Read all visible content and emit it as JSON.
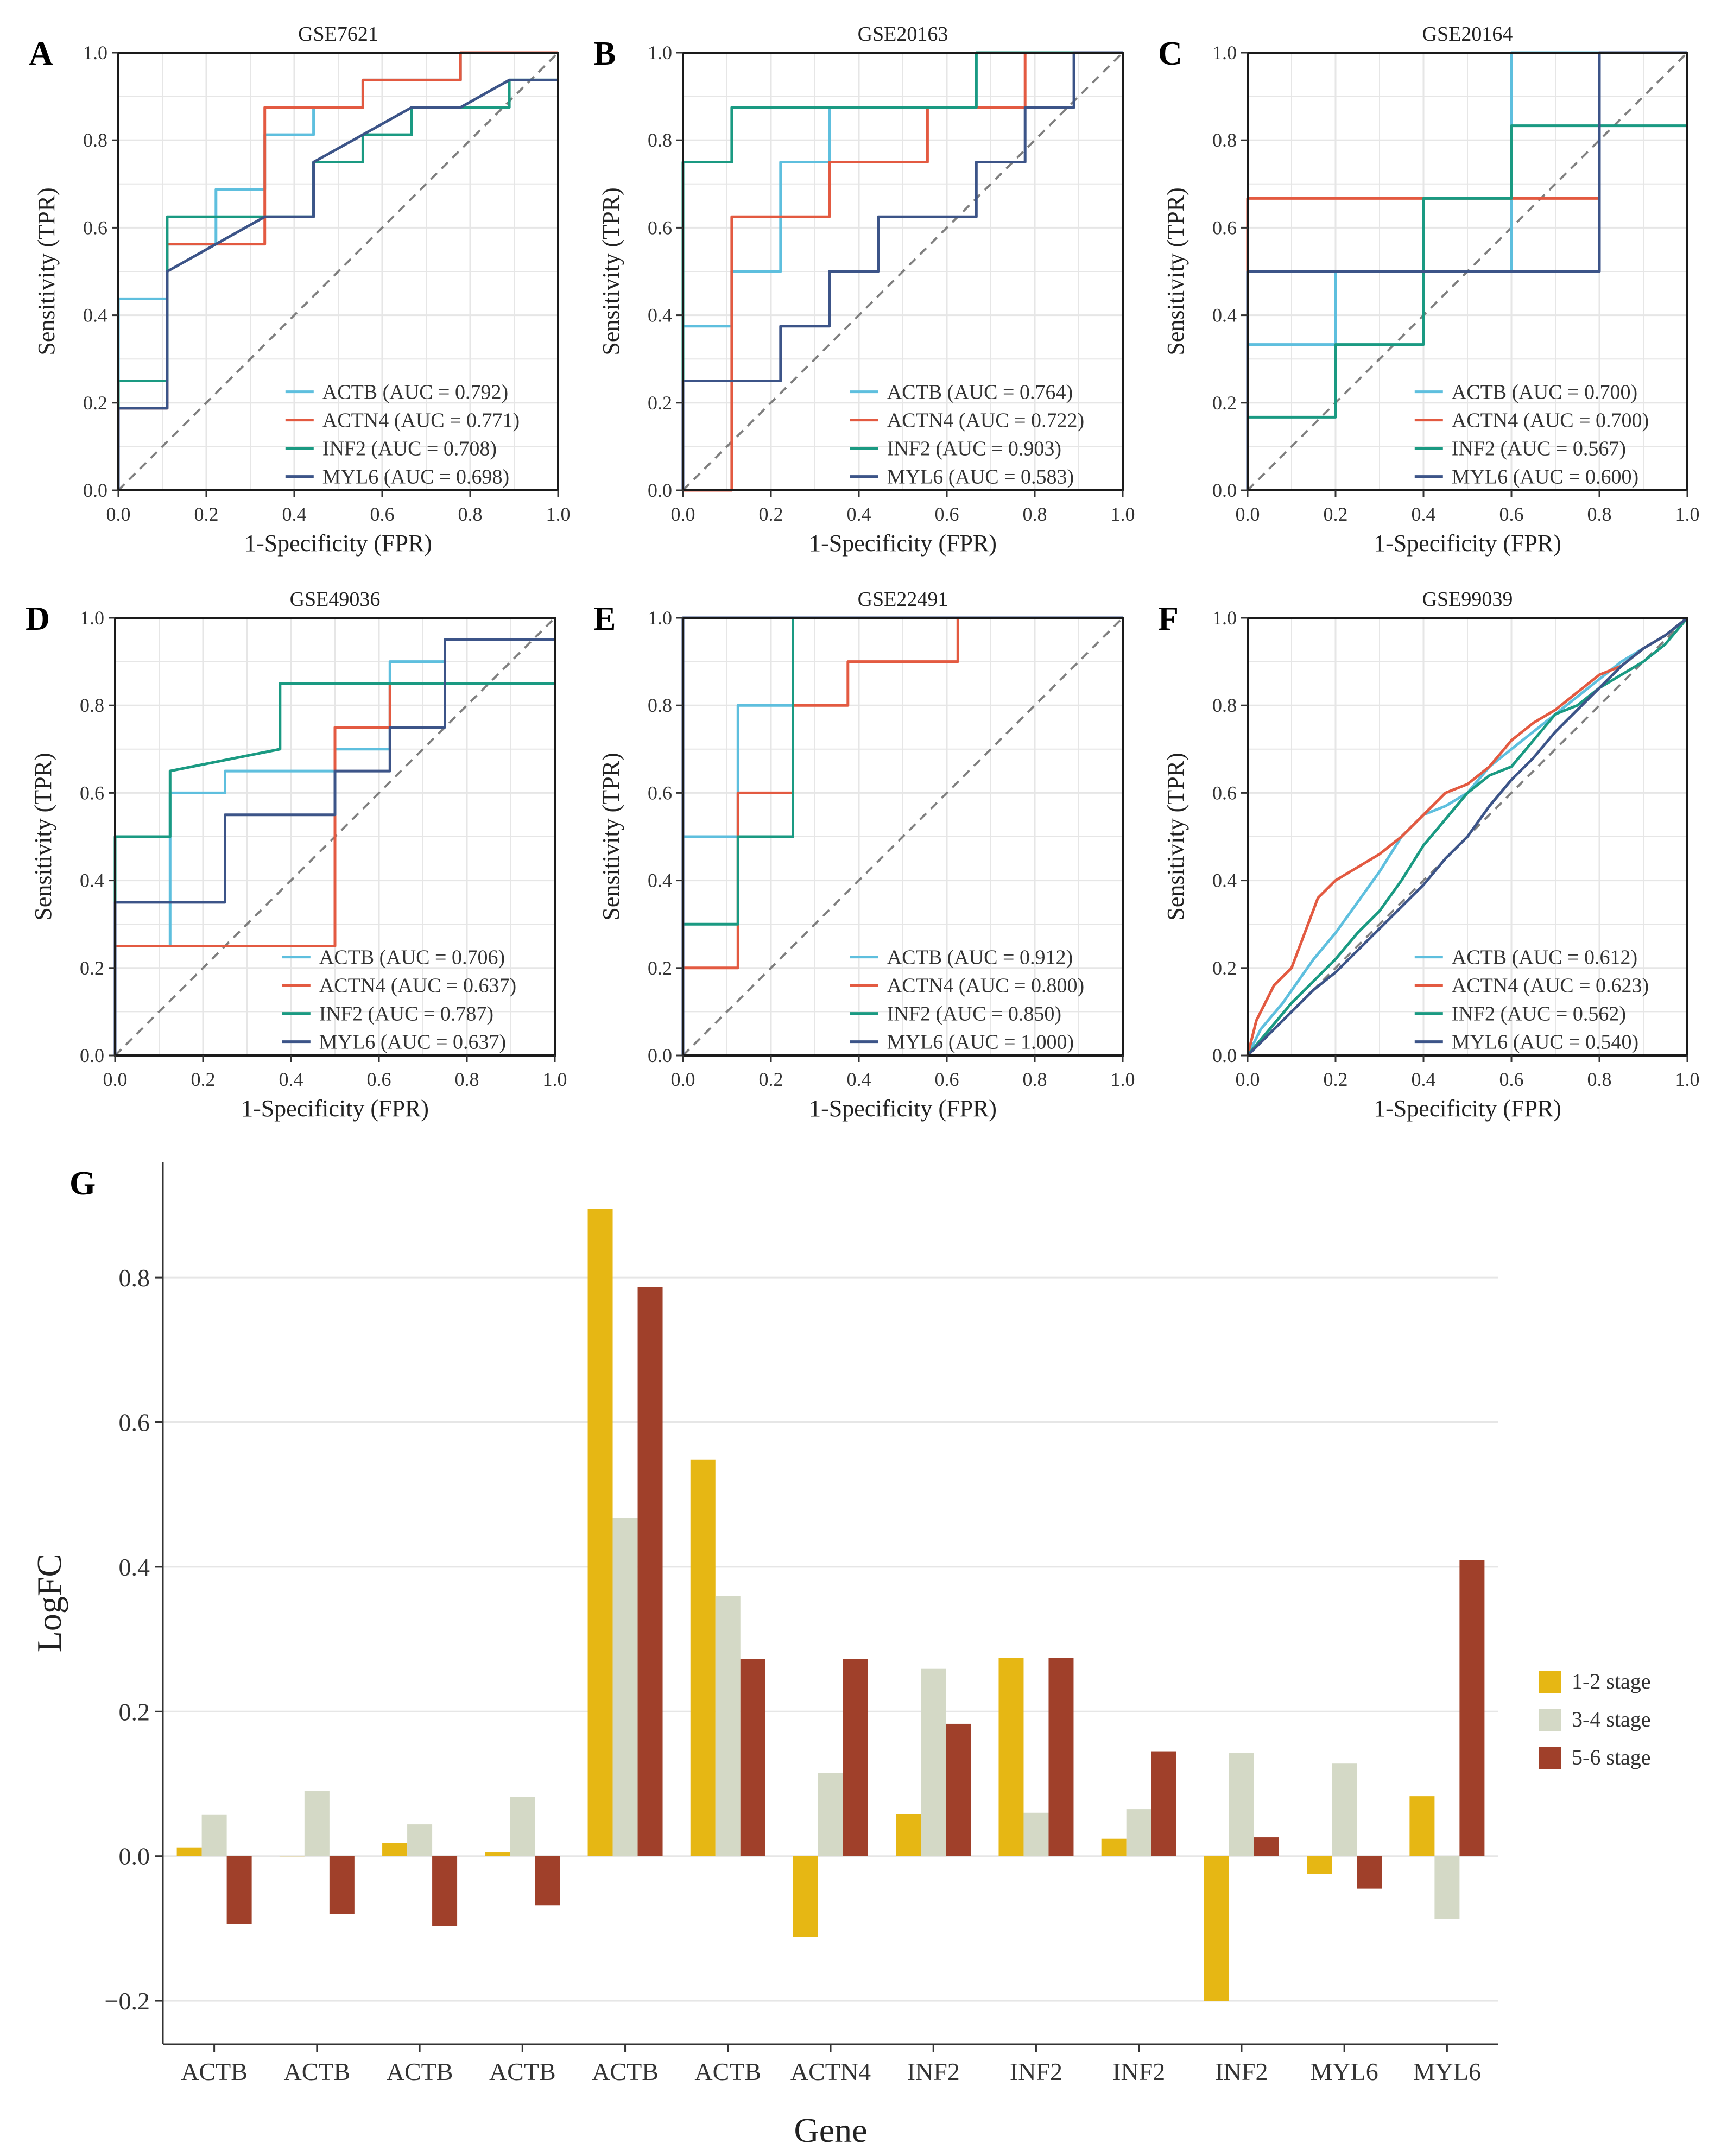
{
  "colors": {
    "ACTB": "#5ebfde",
    "ACTN4": "#e35a41",
    "INF2": "#1a9a82",
    "MYL6": "#3c5488",
    "stage_1_2": "#e6b714",
    "stage_3_4": "#d4d9c6",
    "stage_5_6": "#a0402a",
    "grid": "#e6e6e6",
    "diagonal": "#7f7f7f"
  },
  "chart_data": [
    {
      "panel": "A",
      "type": "line",
      "title": "GSE7621",
      "xlabel": "1-Specificity (FPR)",
      "ylabel": "Sensitivity (TPR)",
      "xlim": [
        0,
        1
      ],
      "ylim": [
        0,
        1
      ],
      "xticks": [
        "0.0",
        "0.2",
        "0.4",
        "0.6",
        "0.8",
        "1.0"
      ],
      "yticks": [
        "0.0",
        "0.2",
        "0.4",
        "0.6",
        "0.8",
        "1.0"
      ],
      "series": [
        {
          "name": "ACTB",
          "legend": "ACTB (AUC = 0.792)",
          "x": [
            0,
            0,
            0.111,
            0.111,
            0.222,
            0.222,
            0.333,
            0.333,
            0.444,
            0.444,
            0.556,
            0.556,
            0.778,
            0.778,
            1
          ],
          "y": [
            0,
            0.4375,
            0.4375,
            0.5625,
            0.5625,
            0.6875,
            0.6875,
            0.8125,
            0.8125,
            0.875,
            0.875,
            0.9375,
            0.9375,
            1,
            1
          ]
        },
        {
          "name": "ACTN4",
          "legend": "ACTN4 (AUC = 0.771)",
          "x": [
            0,
            0,
            0.111,
            0.111,
            0.333,
            0.333,
            0.556,
            0.556,
            0.778,
            0.778,
            1
          ],
          "y": [
            0,
            0.1875,
            0.1875,
            0.5625,
            0.5625,
            0.875,
            0.875,
            0.9375,
            0.9375,
            1,
            1
          ]
        },
        {
          "name": "INF2",
          "legend": "INF2 (AUC = 0.708)",
          "x": [
            0,
            0,
            0.111,
            0.111,
            0.444,
            0.444,
            0.556,
            0.556,
            0.667,
            0.667,
            0.889,
            0.889,
            1
          ],
          "y": [
            0,
            0.25,
            0.25,
            0.625,
            0.625,
            0.75,
            0.75,
            0.8125,
            0.8125,
            0.875,
            0.875,
            0.9375,
            0.9375
          ]
        },
        {
          "name": "MYL6",
          "legend": "MYL6 (AUC = 0.698)",
          "x": [
            0,
            0,
            0.111,
            0.111,
            0.222,
            0.333,
            0.444,
            0.444,
            0.556,
            0.667,
            0.778,
            0.889,
            1
          ],
          "y": [
            0,
            0.1875,
            0.1875,
            0.5,
            0.5625,
            0.625,
            0.625,
            0.75,
            0.8125,
            0.875,
            0.875,
            0.9375,
            0.9375
          ]
        }
      ]
    },
    {
      "panel": "B",
      "type": "line",
      "title": "GSE20163",
      "xlabel": "1-Specificity (FPR)",
      "ylabel": "Sensitivity (TPR)",
      "xlim": [
        0,
        1
      ],
      "ylim": [
        0,
        1
      ],
      "xticks": [
        "0.0",
        "0.2",
        "0.4",
        "0.6",
        "0.8",
        "1.0"
      ],
      "yticks": [
        "0.0",
        "0.2",
        "0.4",
        "0.6",
        "0.8",
        "1.0"
      ],
      "series": [
        {
          "name": "ACTB",
          "legend": "ACTB (AUC = 0.764)",
          "x": [
            0,
            0,
            0.111,
            0.111,
            0.222,
            0.222,
            0.333,
            0.333,
            0.667,
            0.667,
            1
          ],
          "y": [
            0,
            0.375,
            0.375,
            0.5,
            0.5,
            0.75,
            0.75,
            0.875,
            0.875,
            1,
            1
          ]
        },
        {
          "name": "ACTN4",
          "legend": "ACTN4 (AUC = 0.722)",
          "x": [
            0,
            0.111,
            0.111,
            0.333,
            0.333,
            0.556,
            0.556,
            0.778,
            0.778,
            1
          ],
          "y": [
            0,
            0,
            0.625,
            0.625,
            0.75,
            0.75,
            0.875,
            0.875,
            1,
            1
          ]
        },
        {
          "name": "INF2",
          "legend": "INF2 (AUC = 0.903)",
          "x": [
            0,
            0,
            0.111,
            0.111,
            0.667,
            0.667,
            1
          ],
          "y": [
            0,
            0.75,
            0.75,
            0.875,
            0.875,
            1,
            1
          ]
        },
        {
          "name": "MYL6",
          "legend": "MYL6 (AUC = 0.583)",
          "x": [
            0,
            0,
            0.222,
            0.222,
            0.333,
            0.333,
            0.444,
            0.444,
            0.667,
            0.667,
            0.778,
            0.778,
            0.889,
            0.889,
            1
          ],
          "y": [
            0,
            0.25,
            0.25,
            0.375,
            0.375,
            0.5,
            0.5,
            0.625,
            0.625,
            0.75,
            0.75,
            0.875,
            0.875,
            1,
            1
          ]
        }
      ]
    },
    {
      "panel": "C",
      "type": "line",
      "title": "GSE20164",
      "xlabel": "1-Specificity (FPR)",
      "ylabel": "Sensitivity (TPR)",
      "xlim": [
        0,
        1
      ],
      "ylim": [
        0,
        1
      ],
      "xticks": [
        "0.0",
        "0.2",
        "0.4",
        "0.6",
        "0.8",
        "1.0"
      ],
      "yticks": [
        "0.0",
        "0.2",
        "0.4",
        "0.6",
        "0.8",
        "1.0"
      ],
      "series": [
        {
          "name": "ACTB",
          "legend": "ACTB (AUC = 0.700)",
          "x": [
            0,
            0,
            0.2,
            0.2,
            0.6,
            0.6,
            0.8,
            0.8,
            1
          ],
          "y": [
            0,
            0.333,
            0.333,
            0.5,
            0.5,
            1,
            1,
            1,
            1
          ]
        },
        {
          "name": "ACTN4",
          "legend": "ACTN4 (AUC = 0.700)",
          "x": [
            0,
            0,
            0.8,
            0.8,
            1
          ],
          "y": [
            0,
            0.667,
            0.667,
            1,
            1
          ]
        },
        {
          "name": "INF2",
          "legend": "INF2 (AUC = 0.567)",
          "x": [
            0,
            0,
            0.2,
            0.2,
            0.4,
            0.4,
            0.6,
            0.6,
            1
          ],
          "y": [
            0,
            0.167,
            0.167,
            0.333,
            0.333,
            0.667,
            0.667,
            0.833,
            0.833
          ]
        },
        {
          "name": "MYL6",
          "legend": "MYL6 (AUC = 0.600)",
          "x": [
            0,
            0,
            0.8,
            0.8,
            1
          ],
          "y": [
            0,
            0.5,
            0.5,
            1,
            1
          ]
        }
      ]
    },
    {
      "panel": "D",
      "type": "line",
      "title": "GSE49036",
      "xlabel": "1-Specificity (FPR)",
      "ylabel": "Sensitivity (TPR)",
      "xlim": [
        0,
        1
      ],
      "ylim": [
        0,
        1
      ],
      "xticks": [
        "0.0",
        "0.2",
        "0.4",
        "0.6",
        "0.8",
        "1.0"
      ],
      "yticks": [
        "0.0",
        "0.2",
        "0.4",
        "0.6",
        "0.8",
        "1.0"
      ],
      "series": [
        {
          "name": "ACTB",
          "legend": "ACTB (AUC = 0.706)",
          "x": [
            0,
            0,
            0.125,
            0.125,
            0.25,
            0.25,
            0.5,
            0.5,
            0.625,
            0.625,
            0.75,
            0.75,
            1
          ],
          "y": [
            0,
            0.25,
            0.25,
            0.6,
            0.6,
            0.65,
            0.65,
            0.7,
            0.7,
            0.9,
            0.9,
            0.95,
            0.95
          ]
        },
        {
          "name": "ACTN4",
          "legend": "ACTN4 (AUC = 0.637)",
          "x": [
            0,
            0,
            0.5,
            0.5,
            0.625,
            0.625,
            1
          ],
          "y": [
            0,
            0.25,
            0.25,
            0.75,
            0.75,
            0.85,
            0.85
          ]
        },
        {
          "name": "INF2",
          "legend": "INF2 (AUC = 0.787)",
          "x": [
            0,
            0,
            0.125,
            0.125,
            0.375,
            0.375,
            0.625,
            0.625,
            1
          ],
          "y": [
            0,
            0.5,
            0.5,
            0.65,
            0.7,
            0.85,
            0.85,
            0.85,
            0.85
          ]
        },
        {
          "name": "MYL6",
          "legend": "MYL6 (AUC = 0.637)",
          "x": [
            0,
            0,
            0.25,
            0.25,
            0.5,
            0.5,
            0.625,
            0.625,
            0.75,
            0.75,
            1
          ],
          "y": [
            0,
            0.35,
            0.35,
            0.55,
            0.55,
            0.65,
            0.65,
            0.75,
            0.75,
            0.95,
            0.95
          ]
        }
      ]
    },
    {
      "panel": "E",
      "type": "line",
      "title": "GSE22491",
      "xlabel": "1-Specificity (FPR)",
      "ylabel": "Sensitivity (TPR)",
      "xlim": [
        0,
        1
      ],
      "ylim": [
        0,
        1
      ],
      "xticks": [
        "0.0",
        "0.2",
        "0.4",
        "0.6",
        "0.8",
        "1.0"
      ],
      "yticks": [
        "0.0",
        "0.2",
        "0.4",
        "0.6",
        "0.8",
        "1.0"
      ],
      "series": [
        {
          "name": "ACTB",
          "legend": "ACTB (AUC = 0.912)",
          "x": [
            0,
            0,
            0.125,
            0.125,
            0.25,
            0.25,
            1
          ],
          "y": [
            0,
            0.5,
            0.5,
            0.8,
            0.8,
            1,
            1
          ]
        },
        {
          "name": "ACTN4",
          "legend": "ACTN4 (AUC = 0.800)",
          "x": [
            0,
            0.125,
            0.125,
            0.25,
            0.25,
            0.375,
            0.375,
            0.625,
            0.625,
            1
          ],
          "y": [
            0.2,
            0.2,
            0.6,
            0.6,
            0.8,
            0.8,
            0.9,
            0.9,
            1,
            1
          ]
        },
        {
          "name": "INF2",
          "legend": "INF2 (AUC = 0.850)",
          "x": [
            0,
            0,
            0.125,
            0.125,
            0.25,
            0.25,
            1
          ],
          "y": [
            0,
            0.3,
            0.3,
            0.5,
            0.5,
            1,
            1
          ]
        },
        {
          "name": "MYL6",
          "legend": "MYL6 (AUC = 1.000)",
          "x": [
            0,
            0,
            1
          ],
          "y": [
            0,
            1,
            1
          ]
        }
      ]
    },
    {
      "panel": "F",
      "type": "line",
      "title": "GSE99039",
      "xlabel": "1-Specificity (FPR)",
      "ylabel": "Sensitivity (TPR)",
      "xlim": [
        0,
        1
      ],
      "ylim": [
        0,
        1
      ],
      "xticks": [
        "0.0",
        "0.2",
        "0.4",
        "0.6",
        "0.8",
        "1.0"
      ],
      "yticks": [
        "0.0",
        "0.2",
        "0.4",
        "0.6",
        "0.8",
        "1.0"
      ],
      "series": [
        {
          "name": "ACTB",
          "legend": "ACTB (AUC = 0.612)",
          "x": [
            0,
            0.03,
            0.08,
            0.15,
            0.2,
            0.25,
            0.3,
            0.35,
            0.4,
            0.45,
            0.5,
            0.55,
            0.6,
            0.65,
            0.7,
            0.75,
            0.8,
            0.85,
            0.9,
            0.95,
            1
          ],
          "y": [
            0,
            0.06,
            0.12,
            0.22,
            0.28,
            0.35,
            0.42,
            0.5,
            0.55,
            0.57,
            0.6,
            0.66,
            0.7,
            0.74,
            0.78,
            0.82,
            0.86,
            0.9,
            0.93,
            0.96,
            1
          ]
        },
        {
          "name": "ACTN4",
          "legend": "ACTN4 (AUC = 0.623)",
          "x": [
            0,
            0.02,
            0.06,
            0.1,
            0.13,
            0.16,
            0.2,
            0.25,
            0.3,
            0.35,
            0.4,
            0.45,
            0.5,
            0.55,
            0.6,
            0.65,
            0.7,
            0.75,
            0.8,
            0.85,
            0.9,
            0.95,
            1
          ],
          "y": [
            0,
            0.08,
            0.16,
            0.2,
            0.28,
            0.36,
            0.4,
            0.43,
            0.46,
            0.5,
            0.55,
            0.6,
            0.62,
            0.66,
            0.72,
            0.76,
            0.79,
            0.83,
            0.87,
            0.89,
            0.93,
            0.96,
            1
          ]
        },
        {
          "name": "INF2",
          "legend": "INF2 (AUC = 0.562)",
          "x": [
            0,
            0.05,
            0.1,
            0.15,
            0.2,
            0.25,
            0.3,
            0.35,
            0.4,
            0.45,
            0.5,
            0.55,
            0.6,
            0.65,
            0.7,
            0.75,
            0.8,
            0.85,
            0.9,
            0.95,
            1
          ],
          "y": [
            0,
            0.06,
            0.12,
            0.17,
            0.22,
            0.28,
            0.33,
            0.4,
            0.48,
            0.54,
            0.6,
            0.64,
            0.66,
            0.72,
            0.78,
            0.8,
            0.84,
            0.87,
            0.9,
            0.94,
            1
          ]
        },
        {
          "name": "MYL6",
          "legend": "MYL6 (AUC = 0.540)",
          "x": [
            0,
            0.05,
            0.1,
            0.15,
            0.2,
            0.25,
            0.3,
            0.35,
            0.4,
            0.45,
            0.5,
            0.55,
            0.6,
            0.65,
            0.7,
            0.75,
            0.8,
            0.85,
            0.9,
            0.95,
            1
          ],
          "y": [
            0,
            0.05,
            0.1,
            0.15,
            0.19,
            0.24,
            0.29,
            0.34,
            0.39,
            0.45,
            0.5,
            0.57,
            0.63,
            0.68,
            0.74,
            0.79,
            0.84,
            0.89,
            0.93,
            0.96,
            1
          ]
        }
      ]
    },
    {
      "panel": "G",
      "type": "bar",
      "xlabel": "Gene",
      "ylabel": "LogFC",
      "ylim": [
        -0.26,
        0.96
      ],
      "yticks": [
        -0.2,
        0.0,
        0.2,
        0.4,
        0.6,
        0.8
      ],
      "ytick_labels": [
        "−0.2",
        "0.0",
        "0.2",
        "0.4",
        "0.6",
        "0.8"
      ],
      "categories": [
        "ACTB",
        "ACTB",
        "ACTB",
        "ACTB",
        "ACTB",
        "ACTB",
        "ACTN4",
        "INF2",
        "INF2",
        "INF2",
        "INF2",
        "MYL6",
        "MYL6"
      ],
      "series": [
        {
          "name": "1-2 stage",
          "values": [
            0.012,
            0.0,
            0.018,
            0.005,
            0.895,
            0.548,
            -0.112,
            0.058,
            0.274,
            0.024,
            -0.2,
            -0.025,
            0.083
          ]
        },
        {
          "name": "3-4 stage",
          "values": [
            0.057,
            0.09,
            0.044,
            0.082,
            0.468,
            0.36,
            0.115,
            0.259,
            0.06,
            0.065,
            0.143,
            0.128,
            -0.087
          ]
        },
        {
          "name": "5-6 stage",
          "values": [
            -0.094,
            -0.08,
            -0.097,
            -0.068,
            0.787,
            0.273,
            0.273,
            0.183,
            0.274,
            0.145,
            0.026,
            -0.045,
            0.409
          ]
        }
      ]
    }
  ]
}
